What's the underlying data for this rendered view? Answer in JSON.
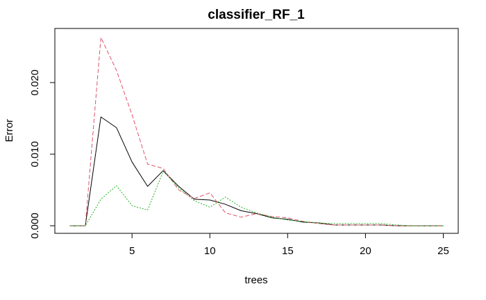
{
  "chart_data": {
    "type": "line",
    "title": "classifier_RF_1",
    "xlabel": "trees",
    "ylabel": "Error",
    "xlim": [
      0.04,
      25.96
    ],
    "ylim": [
      -0.00106,
      0.02756
    ],
    "xticks": [
      5,
      10,
      15,
      20,
      25
    ],
    "xtick_labels": [
      "5",
      "10",
      "15",
      "20",
      "25"
    ],
    "yticks": [
      0.0,
      0.01,
      0.02
    ],
    "ytick_labels": [
      "0.000",
      "0.010",
      "0.020"
    ],
    "grid": false,
    "legend": "none",
    "x": [
      1,
      2,
      3,
      4,
      5,
      6,
      7,
      8,
      9,
      10,
      11,
      12,
      13,
      14,
      15,
      16,
      17,
      18,
      19,
      20,
      21,
      22,
      23,
      24,
      25
    ],
    "series": [
      {
        "color": "#000000",
        "dash": "solid",
        "values": [
          0,
          0,
          0.0152,
          0.0137,
          0.0089,
          0.0055,
          0.0077,
          0.0055,
          0.0037,
          0.0036,
          0.003,
          0.0021,
          0.0017,
          0.0011,
          0.0009,
          0.0005,
          0.0004,
          0.0001,
          0.0001,
          0.0001,
          0.0001,
          0,
          0,
          0,
          0
        ]
      },
      {
        "color": "#DF536B",
        "dash": "dashed",
        "values": [
          0,
          0,
          0.0263,
          0.0217,
          0.0155,
          0.0086,
          0.008,
          0.005,
          0.0038,
          0.0046,
          0.0018,
          0.0012,
          0.0017,
          0.0013,
          0.0011,
          0.0006,
          0.0003,
          0.0001,
          0.0001,
          0.0001,
          0.0001,
          0,
          0,
          0,
          0
        ]
      },
      {
        "color": "#22B022",
        "dash": "dotted",
        "values": [
          0,
          0,
          0.0037,
          0.0056,
          0.0028,
          0.0022,
          0.0076,
          0.0053,
          0.0035,
          0.0026,
          0.004,
          0.0026,
          0.0018,
          0.0012,
          0.0008,
          0.0006,
          0.0004,
          0.0003,
          0.0003,
          0.0003,
          0.0003,
          0.0001,
          0,
          0,
          0
        ]
      }
    ]
  }
}
